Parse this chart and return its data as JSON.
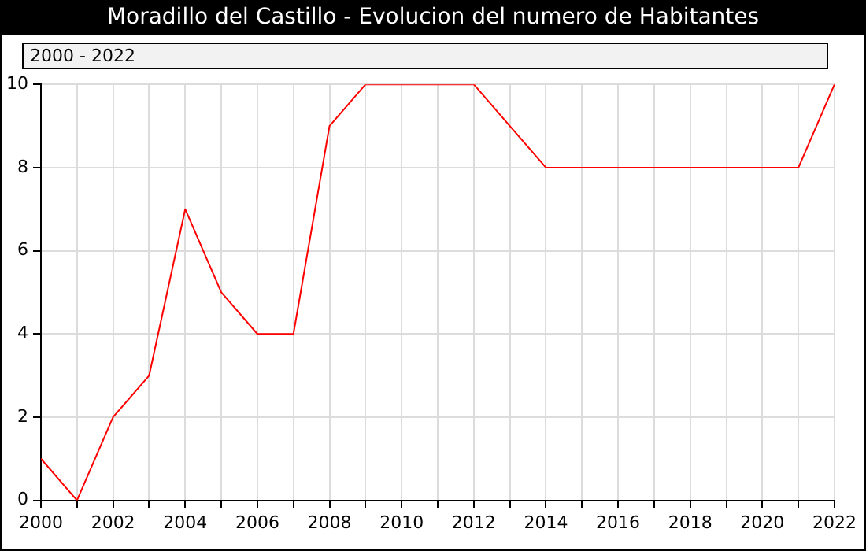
{
  "chart_data": {
    "type": "line",
    "title": "Moradillo del Castillo - Evolucion del numero de Habitantes",
    "subtitle": "2000 - 2022",
    "x": [
      2000,
      2001,
      2002,
      2003,
      2004,
      2005,
      2006,
      2007,
      2008,
      2009,
      2010,
      2011,
      2012,
      2013,
      2014,
      2015,
      2016,
      2017,
      2018,
      2019,
      2020,
      2021,
      2022
    ],
    "series": [
      {
        "color": "#ff0000",
        "values": [
          1,
          0,
          2,
          3,
          7,
          5,
          4,
          4,
          9,
          10,
          10,
          10,
          10,
          9,
          8,
          8,
          8,
          8,
          8,
          8,
          8,
          8,
          10
        ]
      }
    ],
    "xlim": [
      2000,
      2022
    ],
    "xticks": [
      2000,
      {
        "value": 2001,
        "label": null
      },
      2002,
      {
        "value": 2003,
        "label": null
      },
      2004,
      {
        "value": 2005,
        "label": null
      },
      2006,
      {
        "value": 2007,
        "label": null
      },
      2008,
      {
        "value": 2009,
        "label": null
      },
      2010,
      {
        "value": 2011,
        "label": null
      },
      2012,
      {
        "value": 2013,
        "label": null
      },
      2014,
      {
        "value": 2015,
        "label": null
      },
      2016,
      {
        "value": 2017,
        "label": null
      },
      2018,
      {
        "value": 2019,
        "label": null
      },
      2020,
      {
        "value": 2021,
        "label": null
      },
      2022
    ],
    "ylim": [
      0,
      10
    ],
    "yticks": [
      0,
      2,
      4,
      6,
      8,
      10
    ],
    "grid": true,
    "legend": false,
    "marker": "none",
    "line_style": "solid"
  }
}
